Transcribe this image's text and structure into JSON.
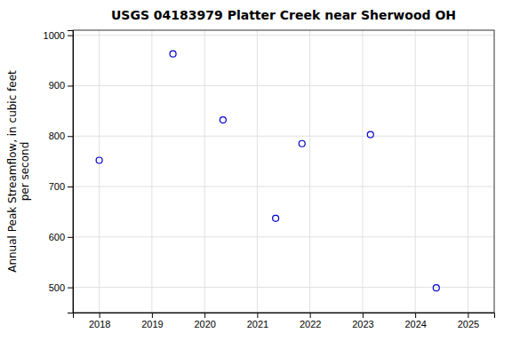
{
  "chart_data": {
    "type": "scatter",
    "title": "USGS 04183979 Platter Creek near Sherwood OH",
    "ylabel": "Annual Peak Streamflow, in cubic feet\nper second",
    "x": [
      2018.0,
      2019.4,
      2020.35,
      2021.35,
      2021.85,
      2023.15,
      2024.4
    ],
    "values": [
      752,
      963,
      832,
      637,
      785,
      803,
      499
    ],
    "color": "#0000cc",
    "marker": "circle",
    "xlim": [
      2017.5,
      2025.5
    ],
    "ylim": [
      450,
      1010
    ],
    "xticks": [
      2018,
      2019,
      2020,
      2021,
      2022,
      2023,
      2024,
      2025
    ],
    "yticks": [
      500,
      600,
      700,
      800,
      900,
      1000
    ],
    "grid": true
  }
}
